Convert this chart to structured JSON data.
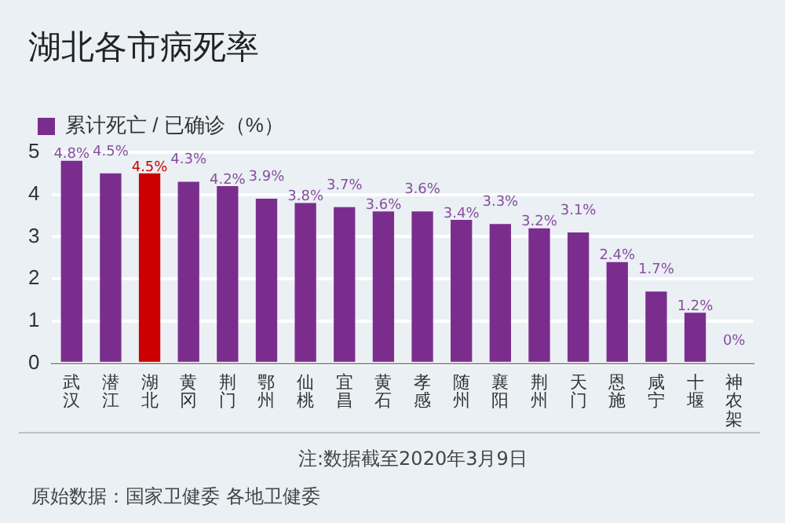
{
  "chart_data": {
    "type": "bar",
    "title": "湖北各市病死率",
    "categories": [
      "武汉",
      "潜江",
      "湖北",
      "黄冈",
      "荆门",
      "鄂州",
      "仙桃",
      "宜昌",
      "黄石",
      "孝感",
      "随州",
      "襄阳",
      "荆州",
      "天门",
      "恩施",
      "咸宁",
      "十堰",
      "神农架"
    ],
    "series": [
      {
        "name": "累计死亡 / 已确诊（%）",
        "color": "#7b2d8e",
        "colors": [
          "#7b2d8e",
          "#7b2d8e",
          "#cc0000",
          "#7b2d8e",
          "#7b2d8e",
          "#7b2d8e",
          "#7b2d8e",
          "#7b2d8e",
          "#7b2d8e",
          "#7b2d8e",
          "#7b2d8e",
          "#7b2d8e",
          "#7b2d8e",
          "#7b2d8e",
          "#7b2d8e",
          "#7b2d8e",
          "#7b2d8e",
          "#7b2d8e"
        ],
        "values": [
          4.8,
          4.5,
          4.5,
          4.3,
          4.2,
          3.9,
          3.8,
          3.7,
          3.6,
          3.6,
          3.4,
          3.3,
          3.2,
          3.1,
          2.4,
          1.7,
          1.2,
          0
        ],
        "value_labels": [
          "4.8%",
          "4.5%",
          "4.5%",
          "4.3%",
          "4.2%",
          "3.9%",
          "3.8%",
          "3.7%",
          "3.6%",
          "3.6%",
          "3.4%",
          "3.3%",
          "3.2%",
          "3.1%",
          "2.4%",
          "1.7%",
          "1.2%",
          "0%"
        ]
      }
    ],
    "ylim": [
      0,
      5
    ],
    "yticks": [
      0,
      1,
      2,
      3,
      4,
      5
    ],
    "grid": "y",
    "legend": "top left",
    "annotations": [
      "注:数据截至2020年3月9日",
      "原始数据：国家卫健委 各地卫健委"
    ]
  }
}
